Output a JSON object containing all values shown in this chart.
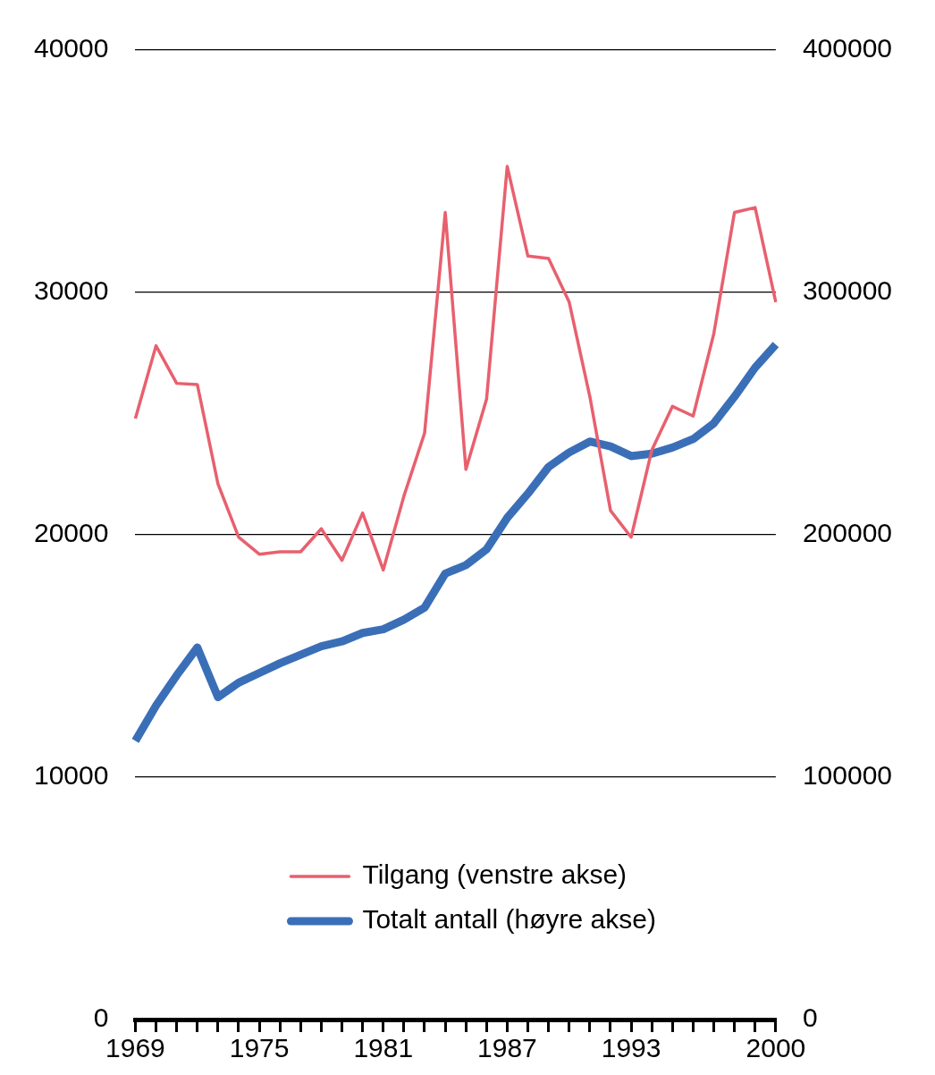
{
  "chart_data": {
    "type": "line",
    "categories": [
      "1969",
      null,
      null,
      null,
      null,
      null,
      "1975",
      null,
      null,
      null,
      null,
      null,
      "1981",
      null,
      null,
      null,
      null,
      null,
      "1987",
      null,
      null,
      null,
      null,
      null,
      "1993",
      null,
      null,
      null,
      null,
      null,
      null,
      "2000"
    ],
    "series": [
      {
        "name": "Tilgang (venstre akse)",
        "color": "#e8606e",
        "axis": "y",
        "values": [
          24800,
          27800,
          26250,
          26200,
          22100,
          19900,
          19200,
          19300,
          19300,
          20250,
          18950,
          20900,
          18550,
          21600,
          24200,
          33300,
          22700,
          25600,
          35200,
          31500,
          31400,
          29600,
          25700,
          21000,
          19900,
          23500,
          25300,
          24900,
          28300,
          33300,
          33500,
          29600
        ]
      },
      {
        "name": "Totalt antall (høyre akse)",
        "color": "#3a6fb8",
        "axis": "y2",
        "values": [
          115000,
          129500,
          142000,
          153500,
          133000,
          139000,
          143000,
          147000,
          150500,
          154000,
          156000,
          159500,
          161000,
          165000,
          170000,
          184000,
          187500,
          194000,
          207000,
          217000,
          228000,
          234000,
          238500,
          236500,
          232500,
          233500,
          236000,
          239500,
          246000,
          257000,
          269000,
          278500
        ]
      }
    ],
    "ylim": [
      0,
      40000
    ],
    "yticks": [
      0,
      10000,
      20000,
      30000,
      40000
    ],
    "y2lim": [
      0,
      400000
    ],
    "y2ticks": [
      0,
      100000,
      200000,
      300000,
      400000
    ],
    "grid": "y",
    "legend": "bottom",
    "marker": "none",
    "line_style": "solid"
  }
}
